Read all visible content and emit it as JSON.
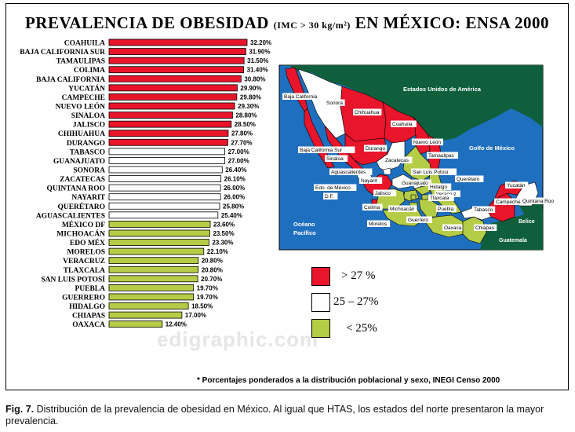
{
  "title": {
    "main1": "PREVALENCIA DE OBESIDAD",
    "unit": "(IMC > 30 kg/m²)",
    "main2": "EN MÉXICO:  ENSA 2000"
  },
  "colors": {
    "high": "#e8152b",
    "mid": "#ffffff",
    "low": "#b5cc47",
    "sea": "#1f6fbf",
    "usa": "#0f5f3c"
  },
  "chart_data": {
    "type": "bar",
    "orientation": "horizontal",
    "title": "PREVALENCIA DE OBESIDAD (IMC > 30 kg/m²) EN MÉXICO: ENSA 2000",
    "categories": [
      "COAHUILA",
      "BAJA CALIFORNIA SUR",
      "TAMAULIPAS",
      "COLIMA",
      "BAJA CALIFORNIA",
      "YUCATÁN",
      "CAMPECHE",
      "NUEVO LEÓN",
      "SINALOA",
      "JALISCO",
      "CHIHUAHUA",
      "DURANGO",
      "TABASCO",
      "GUANAJUATO",
      "SONORA",
      "ZACATECAS",
      "QUINTANA ROO",
      "NAYARIT",
      "QUERÉTARO",
      "AGUASCALIENTES",
      "MÉXICO DF",
      "MICHOACÁN",
      "EDO MÉX",
      "MORELOS",
      "VERACRUZ",
      "TLAXCALA",
      "SAN LUIS POTOSÍ",
      "PUEBLA",
      "GUERRERO",
      "HIDALGO",
      "CHIAPAS",
      "OAXACA"
    ],
    "values": [
      32.2,
      31.9,
      31.5,
      31.4,
      30.8,
      29.9,
      29.8,
      29.3,
      28.8,
      28.5,
      27.8,
      27.7,
      27.0,
      27.0,
      26.4,
      26.1,
      26.0,
      26.0,
      25.8,
      25.4,
      23.6,
      23.5,
      23.3,
      22.1,
      20.8,
      20.8,
      20.7,
      19.7,
      19.7,
      18.5,
      17.0,
      12.4
    ],
    "value_labels": [
      "32.20%",
      "31.90%",
      "31.50%",
      "31.40%",
      "30.80%",
      "29.90%",
      "29.80%",
      "29.30%",
      "28.80%",
      "28.50%",
      "27.80%",
      "27.70%",
      "27.00%",
      "27.00%",
      "26.40%",
      "26.10%",
      "26.00%",
      "26.00%",
      "25.80%",
      "25.40%",
      "23.60%",
      "23.50%",
      "23.30%",
      "22.10%",
      "20.80%",
      "20.80%",
      "20.70%",
      "19.70%",
      "19.70%",
      "18.50%",
      "17.00%",
      "12.40%"
    ],
    "xlim": [
      0,
      32.2
    ],
    "grid": false
  },
  "map": {
    "usa_label": "Estados Unidos de América",
    "gulf_label": "Golfo de México",
    "pacific_label": "Océano Pacífico",
    "guatemala": "Guatemala",
    "belice": "Belice",
    "states": [
      {
        "name": "Baja California",
        "group": "high"
      },
      {
        "name": "Sonora",
        "group": "mid"
      },
      {
        "name": "Chihuahua",
        "group": "high"
      },
      {
        "name": "Coahuila",
        "group": "high"
      },
      {
        "name": "Nuevo León",
        "group": "high"
      },
      {
        "name": "Tamaulipas",
        "group": "high"
      },
      {
        "name": "Baja California Sur",
        "group": "high"
      },
      {
        "name": "Sinaloa",
        "group": "high"
      },
      {
        "name": "Durango",
        "group": "high"
      },
      {
        "name": "Zacatecas",
        "group": "mid"
      },
      {
        "name": "Aguascalientes",
        "group": "mid"
      },
      {
        "name": "San Luis Potosí",
        "group": "low"
      },
      {
        "name": "Nayarit",
        "group": "mid"
      },
      {
        "name": "Querétaro",
        "group": "mid"
      },
      {
        "name": "Edo. de México",
        "group": "low"
      },
      {
        "name": "D.F.",
        "group": "low"
      },
      {
        "name": "Jalisco",
        "group": "high"
      },
      {
        "name": "Guanajuato",
        "group": "mid"
      },
      {
        "name": "Hidalgo",
        "group": "low"
      },
      {
        "name": "Veracruz",
        "group": "low"
      },
      {
        "name": "Tlaxcala",
        "group": "low"
      },
      {
        "name": "Colima",
        "group": "high"
      },
      {
        "name": "Michoacán",
        "group": "low"
      },
      {
        "name": "Morelos",
        "group": "low"
      },
      {
        "name": "Puebla",
        "group": "low"
      },
      {
        "name": "Guerrero",
        "group": "low"
      },
      {
        "name": "Oaxaca",
        "group": "low"
      },
      {
        "name": "Tabasco",
        "group": "mid"
      },
      {
        "name": "Chiapas",
        "group": "low"
      },
      {
        "name": "Campeche",
        "group": "high"
      },
      {
        "name": "Yucatán",
        "group": "high"
      },
      {
        "name": "Quintana Roo",
        "group": "mid"
      }
    ]
  },
  "legend": [
    {
      "group": "high",
      "label": "> 27 %"
    },
    {
      "group": "mid",
      "label": "25 – 27%"
    },
    {
      "group": "low",
      "label": "< 25%"
    }
  ],
  "footnote": "* Porcentajes ponderados a la distribución poblacional y sexo, INEGI Censo 2000",
  "watermark": "edigraphic.com",
  "caption": {
    "label": "Fig. 7.",
    "text": " Distribución de la prevalencia de obesidad en México. Al igual que HTAS, los estados del norte presentaron la mayor prevalencia."
  }
}
